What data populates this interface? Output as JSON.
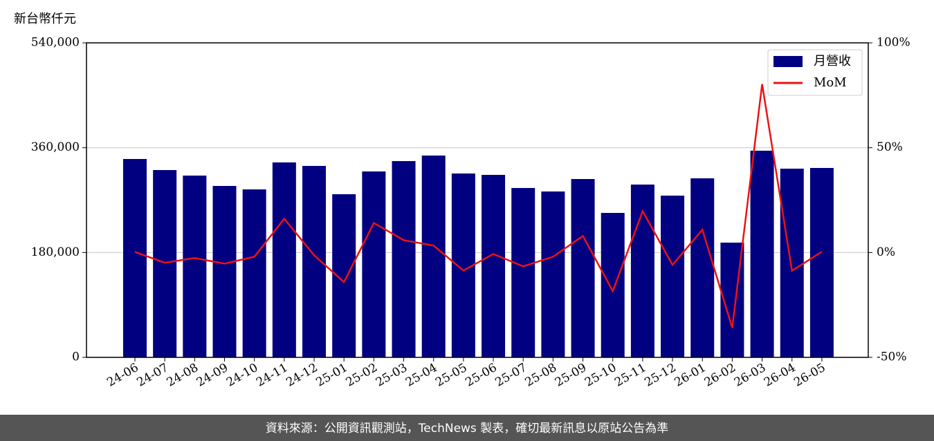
{
  "chart_data": {
    "type": "bar_line",
    "y_label": "新台幣仟元",
    "footer": "資料來源：公開資訊觀測站，TechNews 製表，確切最新訊息以原站公告為準",
    "categories": [
      "24-06",
      "24-07",
      "24-08",
      "24-09",
      "24-10",
      "24-11",
      "24-12",
      "25-01",
      "25-02",
      "25-03",
      "25-04",
      "25-05",
      "25-06",
      "25-07",
      "25-08",
      "25-09",
      "25-10",
      "25-11",
      "25-12",
      "26-01",
      "26-02",
      "26-03",
      "26-04",
      "26-05"
    ],
    "series": [
      {
        "name": "月營收",
        "type": "bar",
        "color": "#000080",
        "values": [
          340600,
          321600,
          312100,
          294300,
          288400,
          334700,
          328700,
          280100,
          319200,
          337000,
          346500,
          315700,
          313300,
          290800,
          284800,
          306200,
          248000,
          296700,
          277700,
          307400,
          197000,
          354800,
          324000,
          325200
        ]
      },
      {
        "name": "MoM",
        "type": "line",
        "axis": "y2",
        "color": "#ee1111",
        "values": [
          0.3,
          -4.9,
          -2.6,
          -5.3,
          -2.0,
          16.1,
          -1.3,
          -14.1,
          14.1,
          5.9,
          3.3,
          -8.6,
          -0.7,
          -6.6,
          -2.0,
          7.9,
          -18.4,
          19.7,
          -5.9,
          10.9,
          -35.9,
          80.3,
          -8.7,
          0.4
        ]
      }
    ],
    "ylim": [
      0,
      540000
    ],
    "yticks": [
      {
        "value": 0,
        "label": "0"
      },
      {
        "value": 180000,
        "label": "180,000"
      },
      {
        "value": 360000,
        "label": "360,000"
      },
      {
        "value": 540000,
        "label": "540,000"
      }
    ],
    "y2lim": [
      -50,
      100
    ],
    "y2ticks": [
      {
        "value": -50,
        "label": "-50%"
      },
      {
        "value": 0,
        "label": "0%"
      },
      {
        "value": 50,
        "label": "50%"
      },
      {
        "value": 100,
        "label": "100%"
      }
    ],
    "grid": true,
    "legend": "upper right"
  }
}
